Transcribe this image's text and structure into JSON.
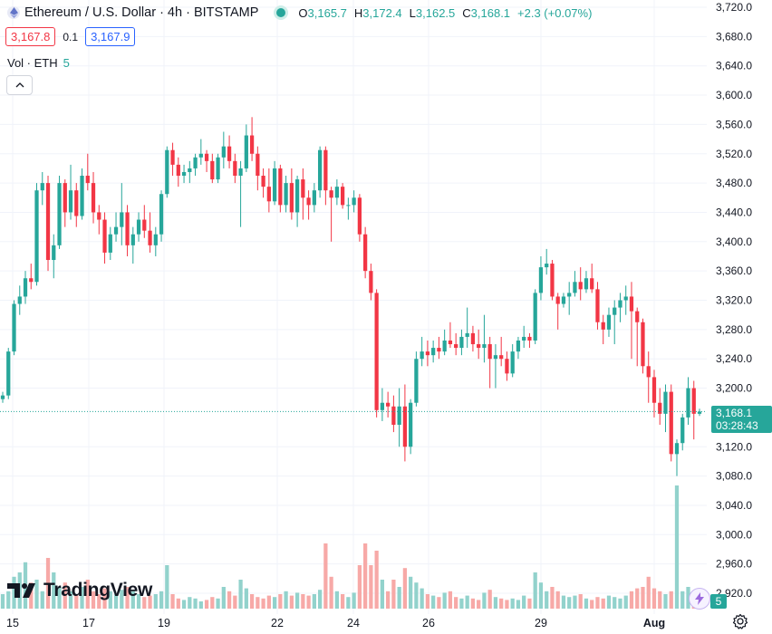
{
  "header": {
    "symbol": "Ethereum / U.S. Dollar · 4h · BITSTAMP",
    "ohlc": {
      "o_label": "O",
      "o": "3,165.7",
      "h_label": "H",
      "h": "3,172.4",
      "l_label": "L",
      "l": "3,162.5",
      "c_label": "C",
      "c": "3,168.1",
      "change": "+2.3 (+0.07%)"
    },
    "sell_price": "3,167.8",
    "spread": "0.1",
    "buy_price": "3,167.9"
  },
  "volume_legend": {
    "label": "Vol · ETH",
    "value": "5"
  },
  "price_axis": {
    "labels": [
      "3,720.0",
      "3,680.0",
      "3,640.0",
      "3,600.0",
      "3,560.0",
      "3,520.0",
      "3,480.0",
      "3,440.0",
      "3,400.0",
      "3,360.0",
      "3,320.0",
      "3,280.0",
      "3,240.0",
      "3,200.0",
      "3,120.0",
      "3,080.0",
      "3,040.0",
      "3,000.0",
      "2,960.0",
      "2,920.0"
    ],
    "current_price": "3,168.1",
    "countdown": "03:28:43"
  },
  "time_axis": {
    "labels": [
      "15",
      "17",
      "19",
      "22",
      "24",
      "26",
      "29",
      "Aug"
    ]
  },
  "volume_badge": "5",
  "logo_text": "TradingView",
  "colors": {
    "up": "#26a69a",
    "down": "#f23645",
    "up_vol": "#92d2cc",
    "down_vol": "#f7a9a7",
    "grid": "#f0f3fa"
  },
  "icons": {
    "symbol": "ethereum-icon",
    "market_status": "market-open-dot",
    "collapse": "chevron-up-icon",
    "logo": "tradingview-logo-icon",
    "bolt": "lightning-icon",
    "settings": "gear-icon"
  },
  "chart_data": {
    "type": "candlestick",
    "ylim": [
      2900,
      3730
    ],
    "candles": [
      [
        3185,
        3195,
        3180,
        3190,
        0.1
      ],
      [
        3190,
        3255,
        3185,
        3250,
        0.12
      ],
      [
        3250,
        3320,
        3245,
        3315,
        0.22
      ],
      [
        3315,
        3340,
        3300,
        3325,
        0.25
      ],
      [
        3325,
        3360,
        3315,
        3350,
        0.32
      ],
      [
        3350,
        3370,
        3335,
        3345,
        0.18
      ],
      [
        3345,
        3480,
        3340,
        3470,
        0.2
      ],
      [
        3470,
        3495,
        3450,
        3480,
        0.12
      ],
      [
        3480,
        3490,
        3360,
        3375,
        0.35
      ],
      [
        3375,
        3410,
        3350,
        3395,
        0.25
      ],
      [
        3395,
        3490,
        3390,
        3480,
        0.15
      ],
      [
        3480,
        3485,
        3420,
        3440,
        0.18
      ],
      [
        3440,
        3505,
        3430,
        3470,
        0.12
      ],
      [
        3470,
        3480,
        3420,
        3435,
        0.1
      ],
      [
        3435,
        3500,
        3430,
        3490,
        0.15
      ],
      [
        3490,
        3520,
        3470,
        3480,
        0.2
      ],
      [
        3480,
        3495,
        3425,
        3440,
        0.12
      ],
      [
        3440,
        3450,
        3410,
        3430,
        0.1
      ],
      [
        3430,
        3440,
        3370,
        3385,
        0.14
      ],
      [
        3385,
        3420,
        3375,
        3410,
        0.12
      ],
      [
        3410,
        3440,
        3400,
        3420,
        0.1
      ],
      [
        3420,
        3480,
        3395,
        3440,
        0.13
      ],
      [
        3440,
        3450,
        3380,
        3395,
        0.15
      ],
      [
        3395,
        3420,
        3370,
        3410,
        0.12
      ],
      [
        3410,
        3440,
        3400,
        3430,
        0.1
      ],
      [
        3430,
        3450,
        3405,
        3415,
        0.08
      ],
      [
        3415,
        3440,
        3385,
        3395,
        0.09
      ],
      [
        3395,
        3420,
        3380,
        3410,
        0.1
      ],
      [
        3410,
        3470,
        3400,
        3465,
        0.12
      ],
      [
        3465,
        3530,
        3460,
        3525,
        0.3
      ],
      [
        3525,
        3535,
        3490,
        3505,
        0.1
      ],
      [
        3505,
        3515,
        3475,
        3490,
        0.07
      ],
      [
        3490,
        3505,
        3480,
        3495,
        0.06
      ],
      [
        3495,
        3510,
        3480,
        3500,
        0.08
      ],
      [
        3500,
        3520,
        3490,
        3515,
        0.07
      ],
      [
        3515,
        3540,
        3505,
        3520,
        0.05
      ],
      [
        3520,
        3525,
        3495,
        3510,
        0.06
      ],
      [
        3510,
        3520,
        3480,
        3485,
        0.08
      ],
      [
        3485,
        3520,
        3480,
        3515,
        0.07
      ],
      [
        3515,
        3550,
        3500,
        3530,
        0.15
      ],
      [
        3530,
        3545,
        3500,
        3510,
        0.12
      ],
      [
        3510,
        3520,
        3480,
        3490,
        0.09
      ],
      [
        3490,
        3510,
        3420,
        3500,
        0.2
      ],
      [
        3500,
        3560,
        3495,
        3545,
        0.14
      ],
      [
        3545,
        3570,
        3510,
        3520,
        0.1
      ],
      [
        3520,
        3530,
        3470,
        3490,
        0.08
      ],
      [
        3490,
        3500,
        3460,
        3475,
        0.07
      ],
      [
        3475,
        3500,
        3440,
        3455,
        0.09
      ],
      [
        3455,
        3510,
        3450,
        3500,
        0.08
      ],
      [
        3500,
        3505,
        3440,
        3450,
        0.1
      ],
      [
        3450,
        3490,
        3440,
        3480,
        0.12
      ],
      [
        3480,
        3500,
        3430,
        3440,
        0.09
      ],
      [
        3440,
        3490,
        3420,
        3485,
        0.11
      ],
      [
        3485,
        3500,
        3430,
        3460,
        0.1
      ],
      [
        3460,
        3470,
        3430,
        3450,
        0.09
      ],
      [
        3450,
        3480,
        3440,
        3470,
        0.1
      ],
      [
        3470,
        3530,
        3460,
        3525,
        0.13
      ],
      [
        3525,
        3530,
        3450,
        3470,
        0.45
      ],
      [
        3470,
        3475,
        3400,
        3460,
        0.22
      ],
      [
        3460,
        3485,
        3450,
        3475,
        0.12
      ],
      [
        3475,
        3480,
        3445,
        3450,
        0.1
      ],
      [
        3450,
        3460,
        3430,
        3450,
        0.08
      ],
      [
        3450,
        3470,
        3440,
        3460,
        0.11
      ],
      [
        3460,
        3465,
        3400,
        3410,
        0.3
      ],
      [
        3410,
        3420,
        3350,
        3360,
        0.45
      ],
      [
        3360,
        3370,
        3320,
        3330,
        0.3
      ],
      [
        3330,
        3335,
        3160,
        3170,
        0.4
      ],
      [
        3170,
        3200,
        3155,
        3180,
        0.2
      ],
      [
        3180,
        3195,
        3160,
        3175,
        0.12
      ],
      [
        3175,
        3190,
        3140,
        3150,
        0.2
      ],
      [
        3150,
        3200,
        3120,
        3175,
        0.15
      ],
      [
        3175,
        3205,
        3100,
        3120,
        0.28
      ],
      [
        3120,
        3185,
        3110,
        3180,
        0.22
      ],
      [
        3180,
        3250,
        3175,
        3240,
        0.18
      ],
      [
        3240,
        3270,
        3230,
        3250,
        0.14
      ],
      [
        3250,
        3265,
        3230,
        3245,
        0.1
      ],
      [
        3245,
        3265,
        3235,
        3255,
        0.09
      ],
      [
        3255,
        3270,
        3240,
        3250,
        0.08
      ],
      [
        3250,
        3280,
        3245,
        3265,
        0.11
      ],
      [
        3265,
        3290,
        3255,
        3260,
        0.12
      ],
      [
        3260,
        3275,
        3245,
        3255,
        0.08
      ],
      [
        3255,
        3280,
        3245,
        3270,
        0.07
      ],
      [
        3270,
        3310,
        3255,
        3275,
        0.09
      ],
      [
        3275,
        3285,
        3250,
        3260,
        0.07
      ],
      [
        3260,
        3280,
        3240,
        3255,
        0.06
      ],
      [
        3255,
        3300,
        3235,
        3260,
        0.11
      ],
      [
        3260,
        3270,
        3200,
        3240,
        0.13
      ],
      [
        3240,
        3260,
        3200,
        3245,
        0.08
      ],
      [
        3245,
        3270,
        3230,
        3240,
        0.07
      ],
      [
        3240,
        3250,
        3210,
        3220,
        0.06
      ],
      [
        3220,
        3260,
        3215,
        3250,
        0.07
      ],
      [
        3250,
        3270,
        3240,
        3265,
        0.06
      ],
      [
        3265,
        3285,
        3255,
        3270,
        0.09
      ],
      [
        3270,
        3275,
        3255,
        3265,
        0.07
      ],
      [
        3265,
        3335,
        3260,
        3330,
        0.25
      ],
      [
        3330,
        3380,
        3320,
        3365,
        0.18
      ],
      [
        3365,
        3390,
        3355,
        3370,
        0.12
      ],
      [
        3370,
        3375,
        3320,
        3325,
        0.15
      ],
      [
        3325,
        3330,
        3280,
        3315,
        0.12
      ],
      [
        3315,
        3330,
        3310,
        3325,
        0.09
      ],
      [
        3325,
        3345,
        3300,
        3330,
        0.08
      ],
      [
        3330,
        3360,
        3325,
        3345,
        0.09
      ],
      [
        3345,
        3365,
        3320,
        3335,
        0.1
      ],
      [
        3335,
        3360,
        3330,
        3350,
        0.07
      ],
      [
        3350,
        3370,
        3330,
        3335,
        0.06
      ],
      [
        3335,
        3345,
        3280,
        3290,
        0.08
      ],
      [
        3290,
        3300,
        3260,
        3280,
        0.07
      ],
      [
        3280,
        3310,
        3270,
        3300,
        0.09
      ],
      [
        3300,
        3320,
        3260,
        3310,
        0.08
      ],
      [
        3310,
        3330,
        3290,
        3320,
        0.07
      ],
      [
        3320,
        3340,
        3300,
        3325,
        0.09
      ],
      [
        3325,
        3345,
        3240,
        3305,
        0.12
      ],
      [
        3305,
        3310,
        3230,
        3290,
        0.14
      ],
      [
        3290,
        3295,
        3220,
        3230,
        0.15
      ],
      [
        3230,
        3250,
        3180,
        3215,
        0.22
      ],
      [
        3215,
        3225,
        3160,
        3180,
        0.14
      ],
      [
        3180,
        3200,
        3150,
        3165,
        0.12
      ],
      [
        3165,
        3205,
        3140,
        3195,
        0.1
      ],
      [
        3195,
        3205,
        3100,
        3110,
        0.12
      ],
      [
        3110,
        3130,
        3080,
        3125,
        0.85
      ],
      [
        3125,
        3165,
        3115,
        3160,
        0.12
      ],
      [
        3160,
        3215,
        3150,
        3200,
        0.15
      ],
      [
        3200,
        3210,
        3130,
        3165,
        0.1
      ],
      [
        3165,
        3172,
        3162,
        3168,
        0.05
      ]
    ]
  }
}
